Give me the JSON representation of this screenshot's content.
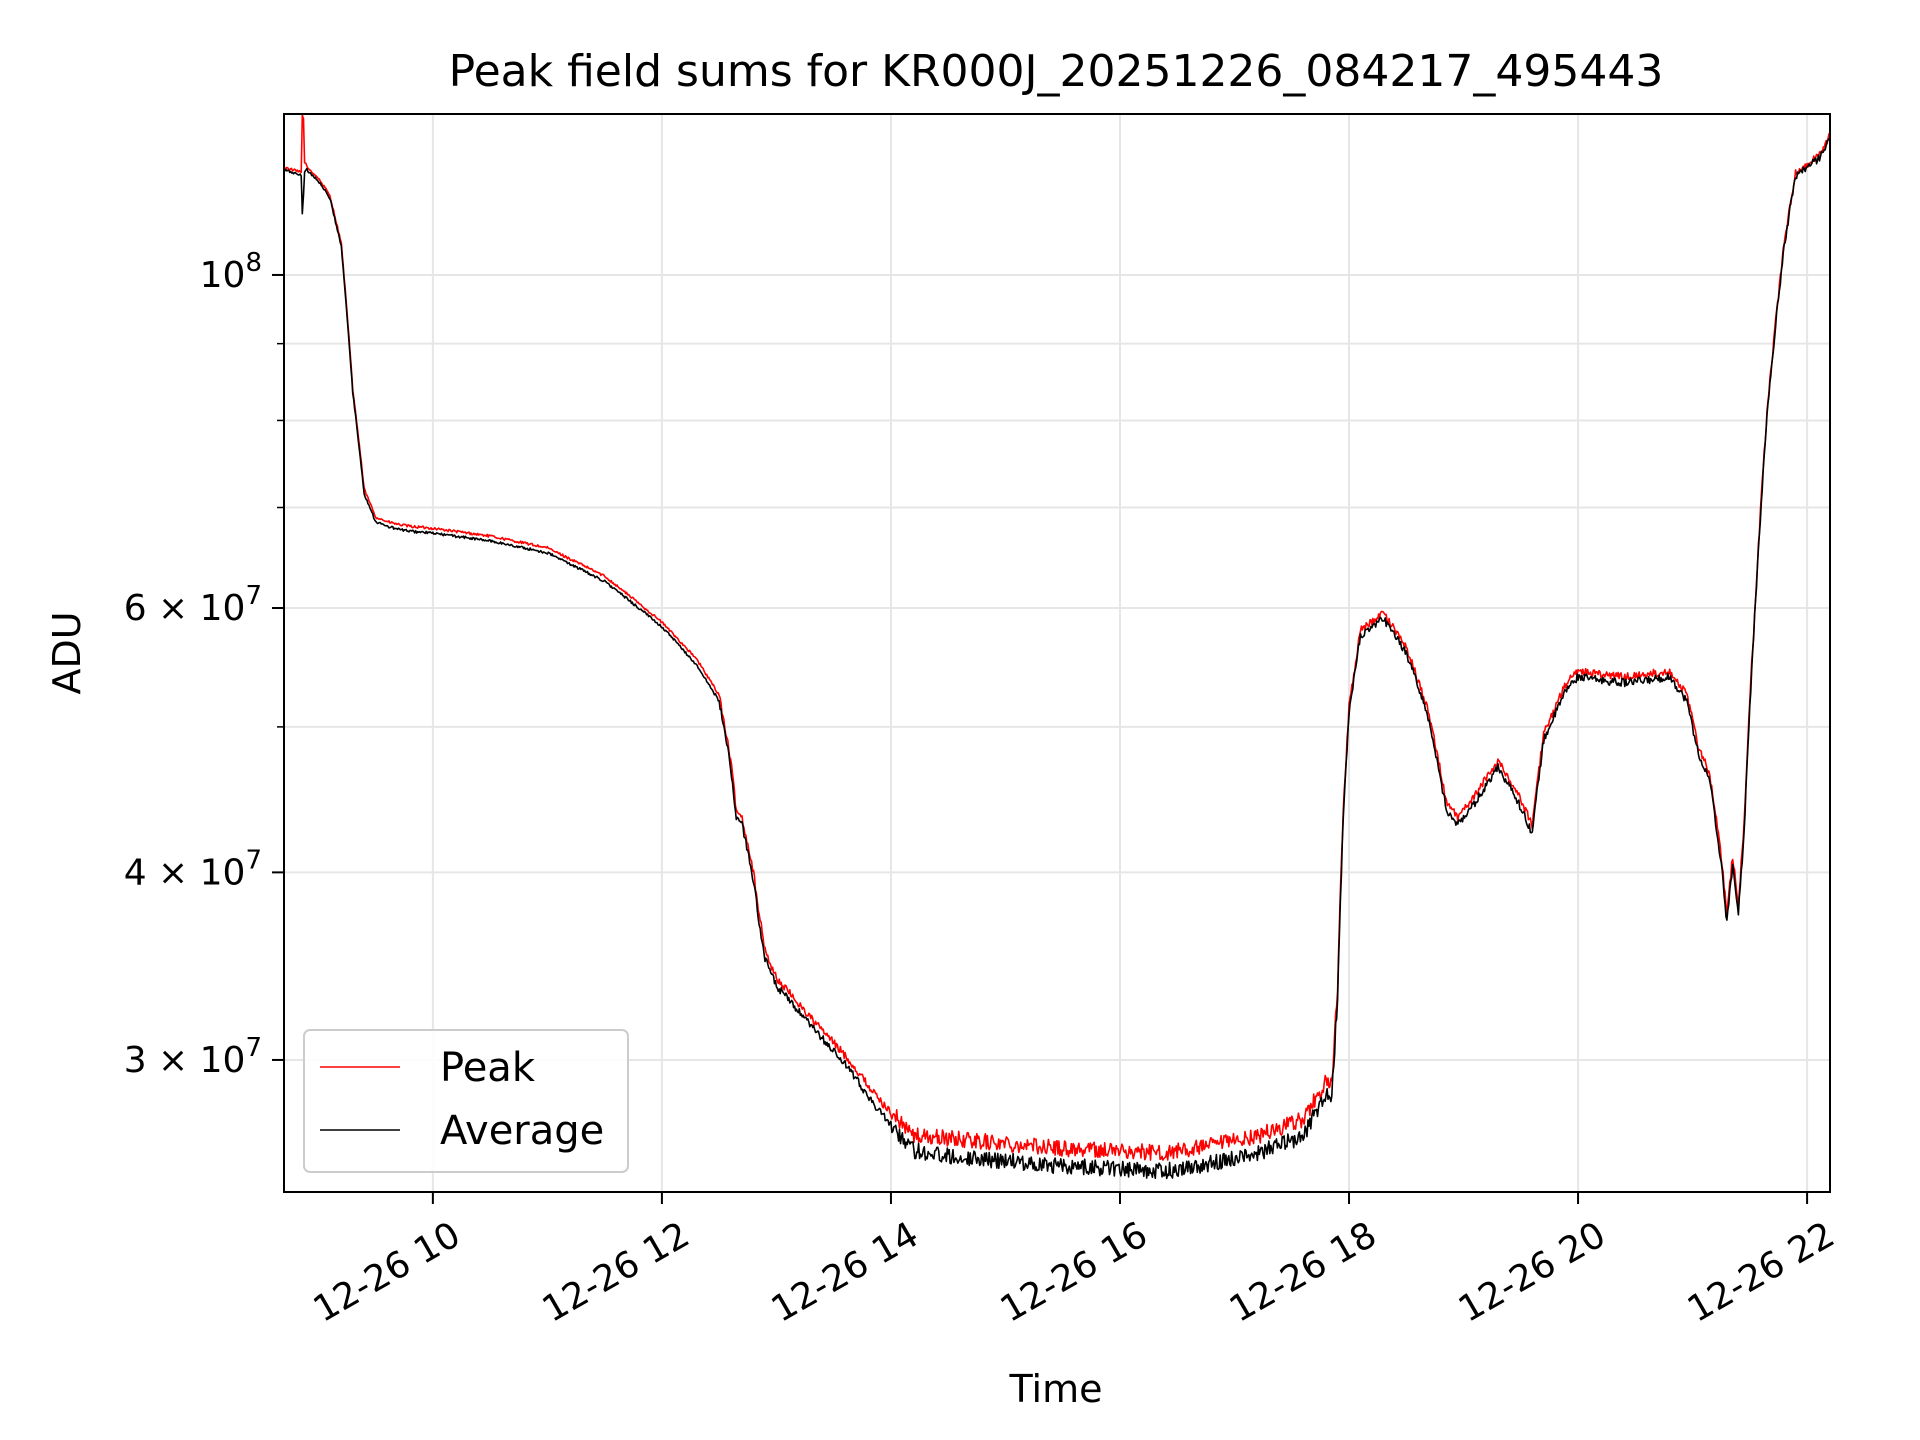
{
  "chart_data": {
    "type": "line",
    "title": "Peak field sums for KR000J_20251226_084217_495443",
    "xlabel": "Time",
    "ylabel": "ADU",
    "yscale": "log",
    "xlim": [
      8.7,
      22.2
    ],
    "ylim": [
      24500000,
      128000000
    ],
    "x_ticks": [
      {
        "value": 10,
        "label": "12-26 10"
      },
      {
        "value": 12,
        "label": "12-26 12"
      },
      {
        "value": 14,
        "label": "12-26 14"
      },
      {
        "value": 16,
        "label": "12-26 16"
      },
      {
        "value": 18,
        "label": "12-26 18"
      },
      {
        "value": 20,
        "label": "12-26 20"
      },
      {
        "value": 22,
        "label": "12-26 22"
      }
    ],
    "y_ticks": [
      {
        "value": 30000000,
        "base": "3 × 10",
        "exp": "7"
      },
      {
        "value": 40000000,
        "base": "4 × 10",
        "exp": "7"
      },
      {
        "value": 60000000,
        "base": "6 × 10",
        "exp": "7"
      },
      {
        "value": 100000000,
        "base": "10",
        "exp": "8"
      }
    ],
    "y_minor_ticks": [
      50000000,
      70000000,
      80000000,
      90000000
    ],
    "grid": true,
    "legend_position": "lower-left",
    "series": [
      {
        "name": "Peak",
        "color": "#ff0000",
        "x": [
          8.7,
          8.85,
          8.86,
          8.87,
          8.88,
          8.9,
          9.0,
          9.1,
          9.2,
          9.3,
          9.4,
          9.5,
          9.6,
          9.7,
          9.8,
          10.0,
          10.5,
          11.0,
          11.5,
          12.0,
          12.3,
          12.5,
          12.6,
          12.65,
          12.7,
          12.8,
          12.85,
          12.9,
          13.0,
          13.3,
          13.6,
          13.9,
          14.2,
          14.5,
          15.0,
          15.5,
          16.0,
          16.4,
          16.8,
          17.2,
          17.6,
          17.8,
          17.85,
          17.9,
          17.95,
          18.0,
          18.1,
          18.3,
          18.5,
          18.7,
          18.85,
          18.95,
          19.1,
          19.3,
          19.45,
          19.6,
          19.7,
          19.8,
          19.9,
          20.0,
          20.2,
          20.4,
          20.6,
          20.8,
          20.95,
          21.05,
          21.15,
          21.25,
          21.3,
          21.35,
          21.4,
          21.45,
          21.55,
          21.65,
          21.8,
          21.9,
          22.0,
          22.1,
          22.2
        ],
        "y": [
          118000000,
          117000000,
          128000000,
          127000000,
          119000000,
          118000000,
          116000000,
          113000000,
          105000000,
          84000000,
          72000000,
          69000000,
          68500000,
          68200000,
          68000000,
          67800000,
          67000000,
          65800000,
          63000000,
          58700000,
          55500000,
          52500000,
          47500000,
          44000000,
          43500000,
          40000000,
          37500000,
          35500000,
          34000000,
          32000000,
          30200000,
          28200000,
          26700000,
          26600000,
          26400000,
          26200000,
          26100000,
          26000000,
          26300000,
          26700000,
          27400000,
          29000000,
          28800000,
          33500000,
          44000000,
          51500000,
          58000000,
          59500000,
          56500000,
          51000000,
          44500000,
          43500000,
          45000000,
          47500000,
          45500000,
          43000000,
          49500000,
          51500000,
          53500000,
          54500000,
          54200000,
          54000000,
          54200000,
          54500000,
          52500000,
          48500000,
          46500000,
          41000000,
          37500000,
          41000000,
          38000000,
          43000000,
          61000000,
          81000000,
          105000000,
          117000000,
          118500000,
          120000000,
          124000000
        ]
      },
      {
        "name": "Average",
        "color": "#000000",
        "x": [
          8.7,
          8.85,
          8.86,
          8.87,
          8.88,
          8.9,
          9.0,
          9.1,
          9.2,
          9.3,
          9.4,
          9.5,
          9.6,
          9.7,
          9.8,
          10.0,
          10.5,
          11.0,
          11.5,
          12.0,
          12.3,
          12.5,
          12.6,
          12.65,
          12.7,
          12.8,
          12.85,
          12.9,
          13.0,
          13.3,
          13.6,
          13.9,
          14.2,
          14.5,
          15.0,
          15.5,
          16.0,
          16.4,
          16.8,
          17.2,
          17.6,
          17.8,
          17.85,
          17.9,
          17.95,
          18.0,
          18.1,
          18.3,
          18.5,
          18.7,
          18.85,
          18.95,
          19.1,
          19.3,
          19.45,
          19.6,
          19.7,
          19.8,
          19.9,
          20.0,
          20.2,
          20.4,
          20.6,
          20.8,
          20.95,
          21.05,
          21.15,
          21.25,
          21.3,
          21.35,
          21.4,
          21.45,
          21.55,
          21.65,
          21.8,
          21.9,
          22.0,
          22.1,
          22.2
        ],
        "y": [
          117500000,
          116500000,
          110000000,
          113000000,
          117000000,
          117500000,
          115500000,
          112500000,
          104500000,
          83500000,
          71500000,
          68500000,
          68000000,
          67700000,
          67500000,
          67300000,
          66500000,
          65300000,
          62500000,
          58300000,
          55000000,
          52000000,
          47000000,
          43500000,
          43000000,
          39500000,
          37000000,
          35000000,
          33600000,
          31600000,
          29800000,
          27700000,
          26100000,
          25900000,
          25700000,
          25500000,
          25400000,
          25300000,
          25600000,
          26000000,
          26700000,
          28500000,
          28300000,
          33000000,
          43500000,
          51000000,
          57500000,
          59000000,
          56000000,
          50500000,
          44000000,
          43000000,
          44500000,
          47000000,
          45000000,
          42500000,
          49000000,
          51000000,
          53000000,
          54000000,
          53700000,
          53500000,
          53700000,
          54000000,
          52000000,
          48000000,
          46000000,
          40500000,
          37000000,
          40500000,
          37500000,
          42500000,
          60500000,
          80500000,
          104500000,
          116500000,
          118000000,
          119500000,
          123500000
        ]
      }
    ]
  }
}
